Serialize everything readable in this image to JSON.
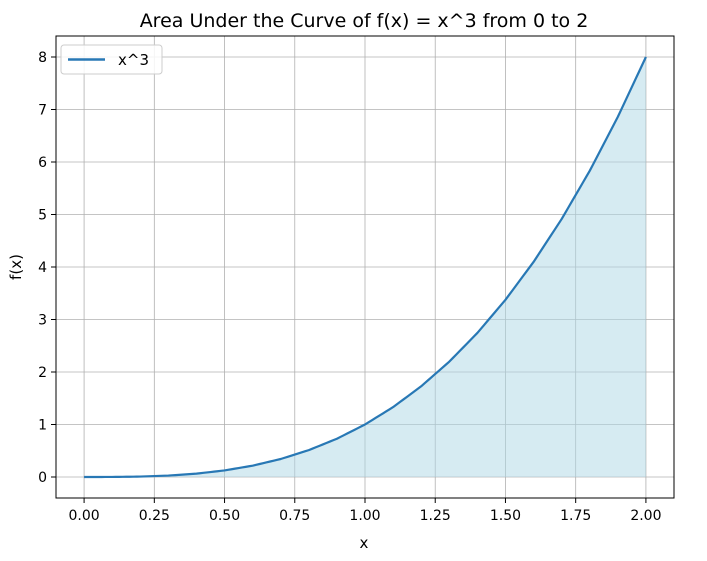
{
  "chart_data": {
    "type": "area",
    "title": "Area Under the Curve of f(x) = x^3 from 0 to 2",
    "xlabel": "x",
    "ylabel": "f(x)",
    "xlim": [
      -0.1,
      2.1
    ],
    "ylim": [
      -0.4,
      8.4
    ],
    "xticks": [
      0.0,
      0.25,
      0.5,
      0.75,
      1.0,
      1.25,
      1.5,
      1.75,
      2.0
    ],
    "xtick_labels": [
      "0.00",
      "0.25",
      "0.50",
      "0.75",
      "1.00",
      "1.25",
      "1.50",
      "1.75",
      "2.00"
    ],
    "yticks": [
      0,
      1,
      2,
      3,
      4,
      5,
      6,
      7,
      8
    ],
    "ytick_labels": [
      "0",
      "1",
      "2",
      "3",
      "4",
      "5",
      "6",
      "7",
      "8"
    ],
    "grid": true,
    "legend": {
      "placement": "upper-left",
      "entries": [
        "x^3"
      ]
    },
    "x": [
      0.0,
      0.1,
      0.2,
      0.3,
      0.4,
      0.5,
      0.6,
      0.7,
      0.8,
      0.9,
      1.0,
      1.1,
      1.2,
      1.3,
      1.4,
      1.5,
      1.6,
      1.7,
      1.8,
      1.9,
      2.0
    ],
    "series": [
      {
        "name": "x^3",
        "values": [
          0.0,
          0.001,
          0.008,
          0.027,
          0.064,
          0.125,
          0.216,
          0.343,
          0.512,
          0.729,
          1.0,
          1.331,
          1.728,
          2.197,
          2.744,
          3.375,
          4.096,
          4.913,
          5.832,
          6.859,
          8.0
        ],
        "color": "#2878b5",
        "fill_color": "#add8e6",
        "fill_alpha": 0.5
      }
    ]
  }
}
